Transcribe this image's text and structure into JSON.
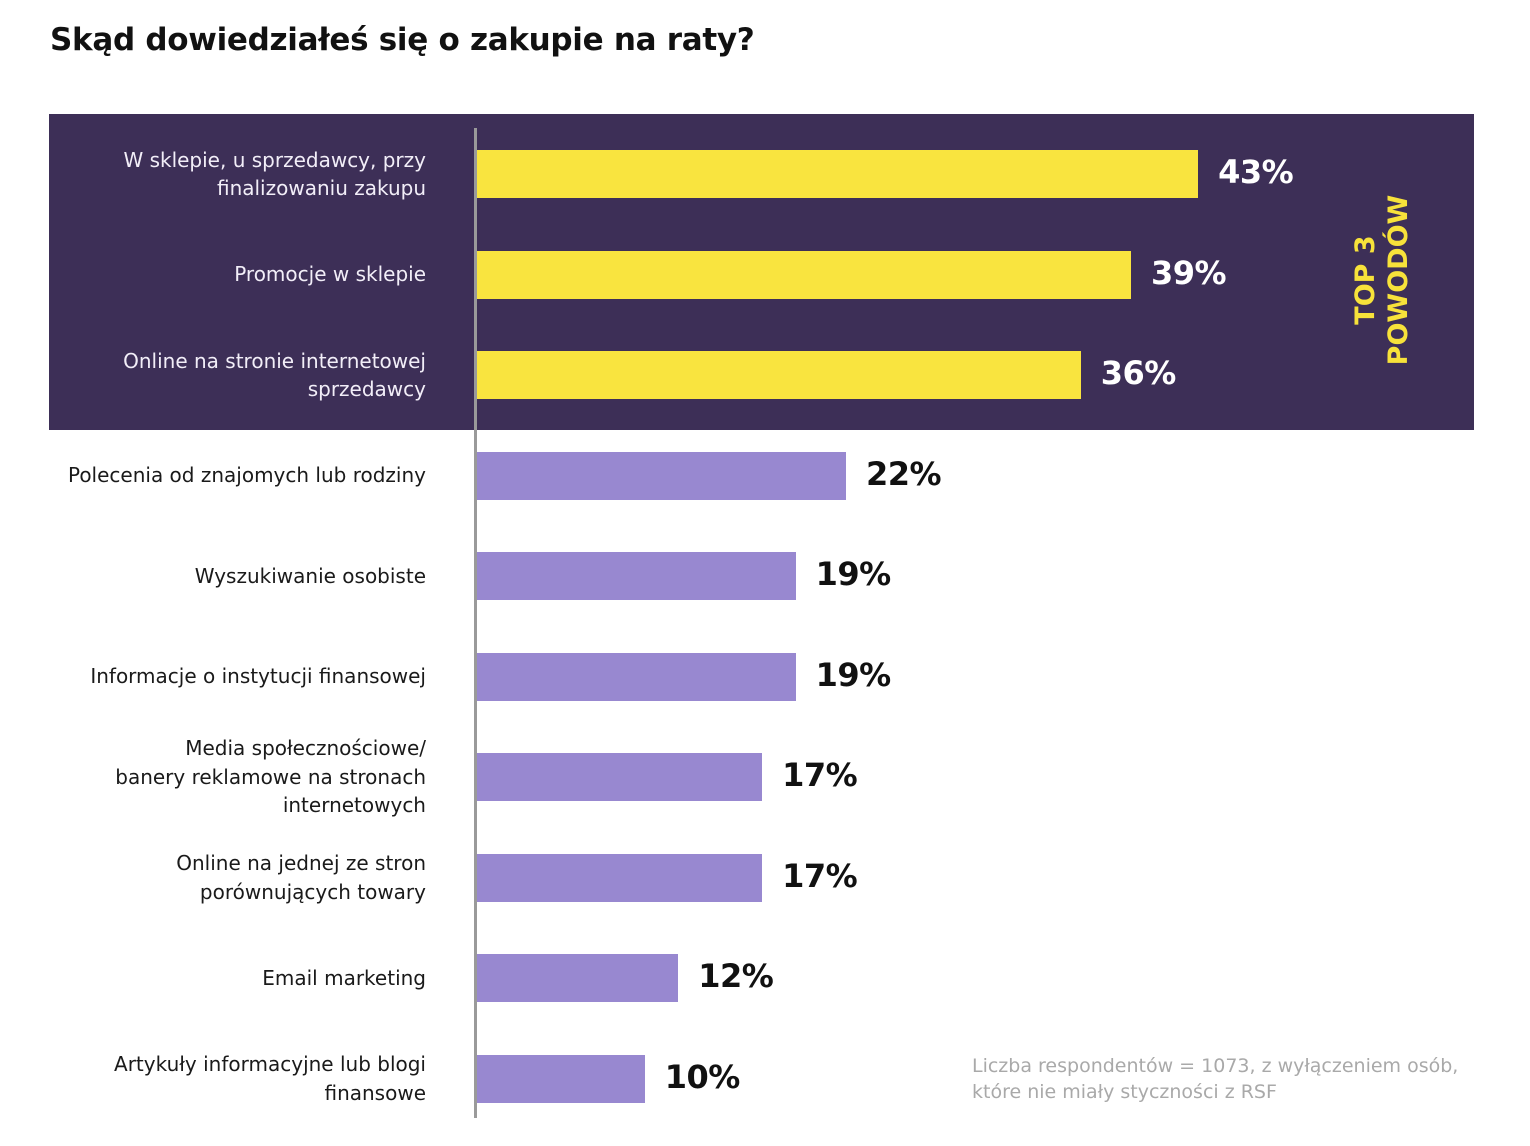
{
  "chart_data": {
    "type": "bar",
    "orientation": "horizontal",
    "title": "Skąd dowiedziałeś się o zakupie na raty?",
    "xlabel": "",
    "ylabel": "",
    "xlim": [
      0,
      43
    ],
    "grid": false,
    "value_suffix": "%",
    "categories": [
      "W sklepie, u sprzedawcy, przy finalizowaniu zakupu",
      "Promocje w sklepie",
      "Online na stronie internetowej sprzedawcy",
      "Polecenia od znajomych lub rodziny",
      "Wyszukiwanie osobiste",
      "Informacje o instytucji finansowej",
      "Media społecznościowe/ banery reklamowe na stronach internetowych",
      "Online na jednej ze stron porównujących towary",
      "Email marketing",
      "Artykuły informacyjne lub blogi finansowe"
    ],
    "label_lines": [
      [
        "W sklepie, u sprzedawcy, przy",
        "finalizowaniu zakupu"
      ],
      [
        "Promocje w sklepie"
      ],
      [
        "Online na stronie internetowej",
        "sprzedawcy"
      ],
      [
        "Polecenia od znajomych lub rodziny"
      ],
      [
        "Wyszukiwanie osobiste"
      ],
      [
        "Informacje o instytucji finansowej"
      ],
      [
        "Media społecznościowe/",
        "banery reklamowe na stronach",
        "internetowych"
      ],
      [
        "Online na jednej ze stron",
        "porównujących towary"
      ],
      [
        "Email marketing"
      ],
      [
        "Artykuły informacyjne lub blogi",
        "finansowe"
      ]
    ],
    "values": [
      43,
      39,
      36,
      22,
      19,
      19,
      17,
      17,
      12,
      10
    ],
    "data_labels": [
      "43%",
      "39%",
      "36%",
      "22%",
      "19%",
      "19%",
      "17%",
      "17%",
      "12%",
      "10%"
    ],
    "highlight_count": 3,
    "highlight_annotation": [
      "TOP 3",
      "POWODÓW"
    ],
    "colors": {
      "highlight_bar": "#f9e43f",
      "bar": "#9888d0",
      "highlight_panel": "#3d2f57",
      "highlight_text": "#f7e23a"
    },
    "footnote": [
      "Liczba respondentów = 1073, z wyłączeniem osób,",
      "które nie miały styczności z RSF"
    ]
  }
}
